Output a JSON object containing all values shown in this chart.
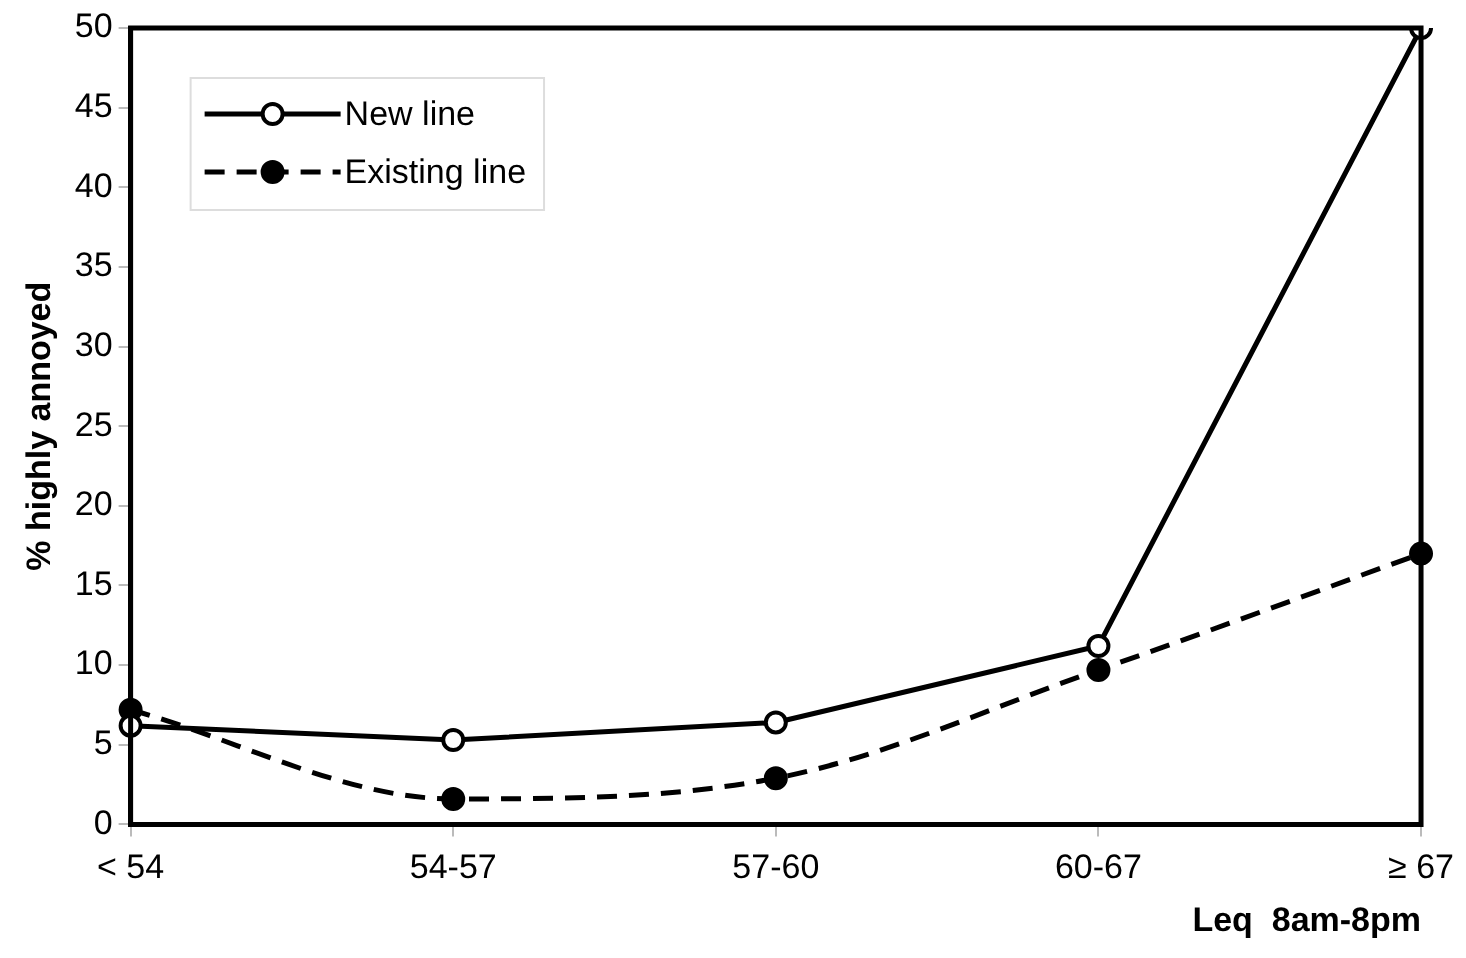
{
  "chart_data": {
    "type": "line",
    "xlabel": "Leq  8am-8pm",
    "ylabel": "% highly annoyed",
    "categories": [
      "< 54",
      "54-57",
      "57-60",
      "60-67",
      "≥ 67"
    ],
    "series": [
      {
        "name": "New line",
        "color": "#000000",
        "line_style": "solid",
        "values": [
          6.2,
          5.3,
          6.4,
          11.2,
          50
        ]
      },
      {
        "name": "Existing line",
        "color": "#000000",
        "line_style": "dashed",
        "values": [
          7.2,
          1.6,
          2.9,
          9.7,
          17.0
        ]
      }
    ],
    "ylim": [
      0,
      50
    ],
    "yticks": [
      0,
      5,
      10,
      15,
      20,
      25,
      30,
      35,
      40,
      45,
      50
    ],
    "grid": false,
    "legend": "top left",
    "marker": "circle"
  }
}
